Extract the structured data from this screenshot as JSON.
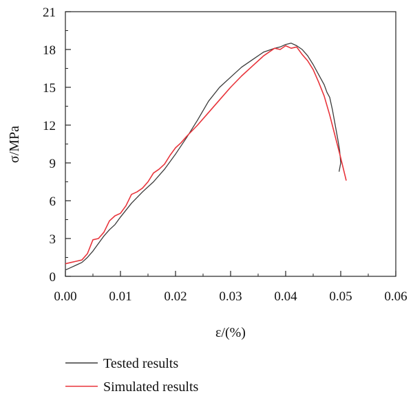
{
  "chart_data": {
    "type": "line",
    "xlabel": "ε/(%)",
    "ylabel": "σ/MPa",
    "xlim": [
      0,
      0.06
    ],
    "ylim": [
      0,
      21
    ],
    "xticks": [
      0.0,
      0.01,
      0.02,
      0.03,
      0.04,
      0.05,
      0.06
    ],
    "xtick_labels": [
      "0.00",
      "0.01",
      "0.02",
      "0.03",
      "0.04",
      "0.05",
      "0.06"
    ],
    "yticks": [
      0,
      3,
      6,
      9,
      12,
      15,
      18,
      21
    ],
    "ytick_labels": [
      "0",
      "3",
      "6",
      "9",
      "12",
      "15",
      "18",
      "21"
    ],
    "grid": false,
    "legend_position": "bottom-left below plot",
    "series": [
      {
        "name": "Tested results",
        "color": "#3a3a3a",
        "x": [
          0.0,
          0.001,
          0.002,
          0.003,
          0.004,
          0.005,
          0.006,
          0.007,
          0.008,
          0.009,
          0.01,
          0.012,
          0.014,
          0.016,
          0.018,
          0.02,
          0.022,
          0.024,
          0.026,
          0.028,
          0.03,
          0.032,
          0.034,
          0.036,
          0.038,
          0.039,
          0.04,
          0.041,
          0.042,
          0.043,
          0.044,
          0.045,
          0.046,
          0.047,
          0.0475,
          0.048,
          0.0485,
          0.049,
          0.0495,
          0.0498,
          0.05,
          0.0497
        ],
        "y": [
          0.5,
          0.7,
          0.9,
          1.1,
          1.5,
          2.0,
          2.6,
          3.2,
          3.7,
          4.1,
          4.7,
          5.8,
          6.7,
          7.5,
          8.5,
          9.7,
          11.0,
          12.4,
          13.9,
          15.0,
          15.8,
          16.6,
          17.2,
          17.8,
          18.1,
          18.2,
          18.4,
          18.5,
          18.3,
          18.0,
          17.5,
          16.8,
          16.0,
          15.2,
          14.6,
          14.2,
          13.2,
          12.0,
          10.8,
          10.0,
          9.0,
          8.3
        ]
      },
      {
        "name": "Simulated results",
        "color": "#e8333a",
        "x": [
          0.0,
          0.001,
          0.002,
          0.003,
          0.004,
          0.005,
          0.006,
          0.007,
          0.008,
          0.009,
          0.01,
          0.011,
          0.012,
          0.013,
          0.014,
          0.015,
          0.016,
          0.017,
          0.018,
          0.019,
          0.02,
          0.021,
          0.022,
          0.024,
          0.026,
          0.028,
          0.03,
          0.032,
          0.034,
          0.036,
          0.038,
          0.039,
          0.04,
          0.041,
          0.042,
          0.043,
          0.044,
          0.045,
          0.046,
          0.047,
          0.048,
          0.049,
          0.05,
          0.051
        ],
        "y": [
          1.0,
          1.1,
          1.2,
          1.3,
          1.8,
          2.9,
          3.0,
          3.5,
          4.4,
          4.8,
          5.0,
          5.6,
          6.5,
          6.7,
          7.0,
          7.5,
          8.2,
          8.5,
          8.9,
          9.6,
          10.2,
          10.6,
          11.1,
          12.0,
          13.0,
          14.0,
          15.0,
          15.9,
          16.7,
          17.5,
          18.1,
          18.0,
          18.3,
          18.1,
          18.2,
          17.6,
          17.1,
          16.4,
          15.4,
          14.3,
          12.8,
          11.1,
          9.4,
          7.6
        ]
      }
    ]
  }
}
